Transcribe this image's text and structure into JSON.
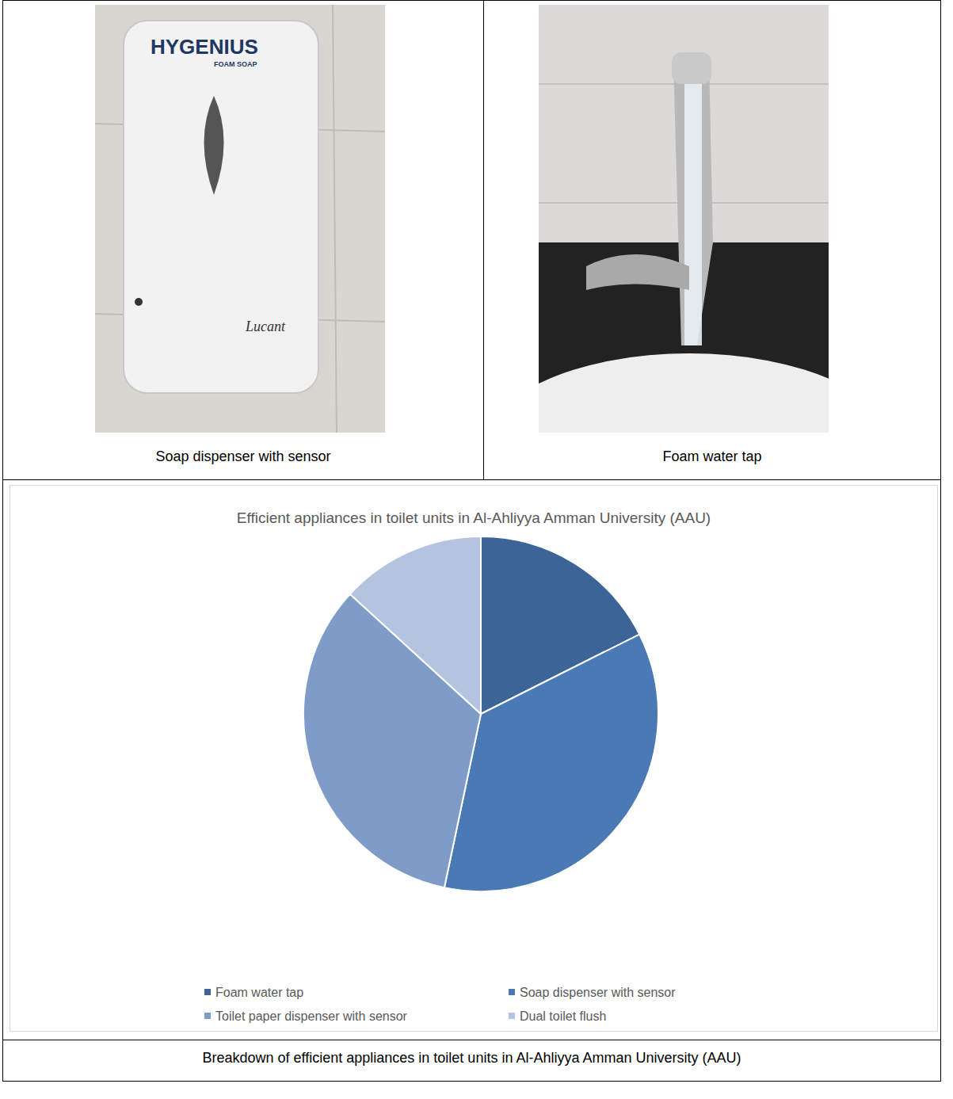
{
  "cells": [
    {
      "caption": "Soap dispenser with sensor",
      "photo_texts": [
        "HYGENIUS",
        "FOAM SOAP",
        "Lucant"
      ]
    },
    {
      "caption": "Foam water tap"
    }
  ],
  "chart_data": {
    "type": "pie",
    "title": "Efficient appliances in toilet units in Al-Ahliyya Amman University (AAU)",
    "categories": [
      "Foam water tap",
      "Soap dispenser with sensor",
      "Toilet paper dispenser with sensor",
      "Dual toilet flush"
    ],
    "values": [
      17.6,
      35.7,
      33.5,
      13.2
    ],
    "colors": [
      "#3c6496",
      "#4a79b3",
      "#7f9cc8",
      "#b4c3df"
    ],
    "legend": "bottom",
    "data_labels": false
  },
  "caption": "Breakdown of efficient appliances in toilet units in Al-Ahliyya Amman University (AAU)"
}
